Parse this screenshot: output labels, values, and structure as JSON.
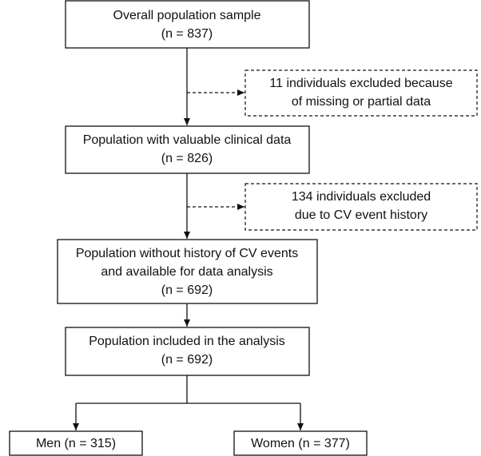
{
  "nodes": [
    {
      "lines": [
        "Overall population sample",
        "(n = 837)"
      ]
    },
    {
      "lines": [
        "11 individuals excluded because",
        "of missing or partial data"
      ]
    },
    {
      "lines": [
        "Population with valuable clinical data",
        "(n = 826)"
      ]
    },
    {
      "lines": [
        "134 individuals excluded",
        "due to CV event history"
      ]
    },
    {
      "lines": [
        "Population without history of CV events",
        "and available for data analysis",
        "(n = 692)"
      ]
    },
    {
      "lines": [
        "Population included in the analysis",
        "(n = 692)"
      ]
    },
    {
      "lines": [
        "Men (n = 315)"
      ]
    },
    {
      "lines": [
        "Women (n = 377)"
      ]
    }
  ]
}
